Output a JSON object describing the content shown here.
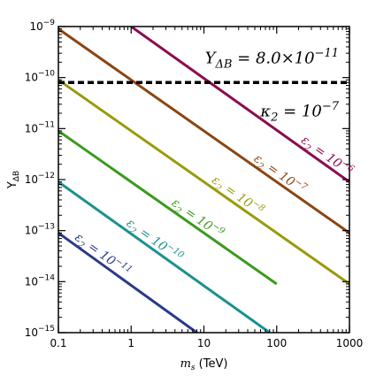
{
  "chart_data": {
    "type": "line",
    "xlabel": {
      "main": "m",
      "sub": "s",
      "unit": " (TeV)"
    },
    "ylabel": {
      "main": "Y",
      "sub": "ΔB"
    },
    "x_scale": "log",
    "y_scale": "log",
    "xlim": [
      0.1,
      1000
    ],
    "ylim": [
      1e-15,
      1e-09
    ],
    "x_ticks": [
      {
        "value": 0.1,
        "label": "0.1"
      },
      {
        "value": 1,
        "label": "1"
      },
      {
        "value": 10,
        "label": "10"
      },
      {
        "value": 100,
        "label": "100"
      },
      {
        "value": 1000,
        "label": "1000"
      }
    ],
    "y_ticks": [
      {
        "value": 1e-15,
        "base": "10",
        "exp": "−15"
      },
      {
        "value": 1e-14,
        "base": "10",
        "exp": "−14"
      },
      {
        "value": 1e-13,
        "base": "10",
        "exp": "−13"
      },
      {
        "value": 1e-12,
        "base": "10",
        "exp": "−12"
      },
      {
        "value": 1e-11,
        "base": "10",
        "exp": "−11"
      },
      {
        "value": 1e-10,
        "base": "10",
        "exp": "−10"
      },
      {
        "value": 1e-09,
        "base": "10",
        "exp": "−9"
      }
    ],
    "grid": false,
    "series": [
      {
        "name": "ε₂ = 10⁻⁶",
        "label": {
          "main": "ε",
          "sub": "2",
          "rest": " = 10",
          "exp": "−6"
        },
        "color": "#8c0d4f",
        "x": [
          1,
          1000
        ],
        "y": [
          1e-09,
          9e-13
        ],
        "label_at": 420,
        "label_offset": -5
      },
      {
        "name": "ε₂ = 10⁻⁷",
        "label": {
          "main": "ε",
          "sub": "2",
          "rest": " = 10",
          "exp": "−7"
        },
        "color": "#8b4513",
        "x": [
          0.1,
          1000
        ],
        "y": [
          9e-10,
          9e-14
        ],
        "label_at": 95,
        "label_offset": -5
      },
      {
        "name": "ε₂ = 10⁻⁸",
        "label": {
          "main": "ε",
          "sub": "2",
          "rest": " = 10",
          "exp": "−8"
        },
        "color": "#9a9a0e",
        "x": [
          0.1,
          1000
        ],
        "y": [
          9e-11,
          9e-15
        ],
        "label_at": 25,
        "label_offset": -5
      },
      {
        "name": "ε₂ = 10⁻⁹",
        "label": {
          "main": "ε",
          "sub": "2",
          "rest": " = 10",
          "exp": "−9"
        },
        "color": "#3c9a1e",
        "x": [
          0.1,
          100
        ],
        "y": [
          9e-12,
          9e-15
        ],
        "label_at": 7,
        "label_offset": -5
      },
      {
        "name": "ε₂ = 10⁻¹⁰",
        "label": {
          "main": "ε",
          "sub": "2",
          "rest": " = 10",
          "exp": "−10"
        },
        "color": "#1e9090",
        "x": [
          0.1,
          80
        ],
        "y": [
          9e-13,
          1e-15
        ],
        "label_at": 1.8,
        "label_offset": -5
      },
      {
        "name": "ε₂ = 10⁻¹¹",
        "label": {
          "main": "ε",
          "sub": "2",
          "rest": " = 10",
          "exp": "−11"
        },
        "color": "#2a3a8a",
        "x": [
          0.1,
          8
        ],
        "y": [
          9e-14,
          1e-15
        ],
        "label_at": 0.35,
        "label_offset": -5
      }
    ],
    "reference_line": {
      "y": 8e-11,
      "style": "dashed",
      "color": "#000000",
      "label": {
        "main": "Y",
        "sub": "ΔB",
        "rest": " = 8.0×10",
        "exp": "−11"
      }
    },
    "annotation": {
      "main": "κ",
      "sub": "2",
      "rest": " = 10",
      "exp": "−7"
    }
  }
}
